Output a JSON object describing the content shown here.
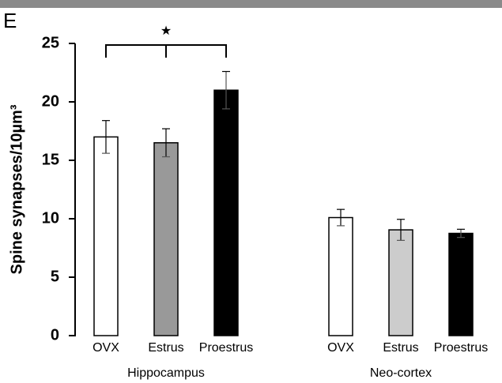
{
  "panel_label": "E",
  "chart_data": {
    "type": "bar",
    "ylabel": "Spine synapses/10µm³",
    "ylim": [
      0,
      25
    ],
    "yticks": [
      0,
      5,
      10,
      15,
      20,
      25
    ],
    "groups": [
      {
        "name": "Hippocampus",
        "categories": [
          "OVX",
          "Estrus",
          "Proestrus"
        ],
        "values": [
          17,
          16.5,
          21
        ],
        "errors": [
          1.4,
          1.2,
          1.6
        ],
        "colors": [
          "#ffffff",
          "#999999",
          "#000000"
        ]
      },
      {
        "name": "Neo-cortex",
        "categories": [
          "OVX",
          "Estrus",
          "Proestrus"
        ],
        "values": [
          10.1,
          9.05,
          8.75
        ],
        "errors": [
          0.7,
          0.9,
          0.35
        ],
        "colors": [
          "#ffffff",
          "#cccccc",
          "#000000"
        ]
      }
    ],
    "annotations": [
      {
        "text": "★",
        "group": 0
      }
    ]
  }
}
